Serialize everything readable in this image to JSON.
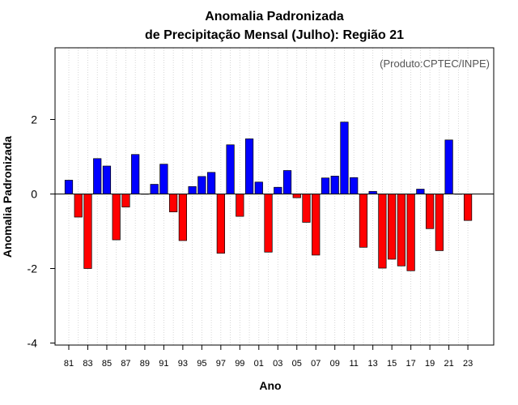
{
  "chart_data": {
    "type": "bar",
    "title": "Anomalia Padronizada",
    "subtitle": "de Precipitação Mensal (Julho): Região 21",
    "xlabel": "Ano",
    "ylabel": "Anomalia Padronizada",
    "annotation": "(Produto:CPTEC/INPE)",
    "ylim": [
      -4,
      4
    ],
    "yticks": [
      -4,
      -2,
      0,
      2
    ],
    "ytick_labels": [
      "-4",
      "-2",
      "0",
      "2"
    ],
    "xtick_labels": [
      "81",
      "83",
      "85",
      "87",
      "89",
      "91",
      "93",
      "95",
      "97",
      "99",
      "01",
      "03",
      "05",
      "07",
      "09",
      "11",
      "13",
      "15",
      "17",
      "19",
      "21",
      "23"
    ],
    "categories": [
      "1981",
      "1982",
      "1983",
      "1984",
      "1985",
      "1986",
      "1987",
      "1988",
      "1989",
      "1990",
      "1991",
      "1992",
      "1993",
      "1994",
      "1995",
      "1996",
      "1997",
      "1998",
      "1999",
      "2000",
      "2001",
      "2002",
      "2003",
      "2004",
      "2005",
      "2006",
      "2007",
      "2008",
      "2009",
      "2010",
      "2011",
      "2012",
      "2013",
      "2014",
      "2015",
      "2016",
      "2017",
      "2018",
      "2019",
      "2020",
      "2021",
      "2022",
      "2023"
    ],
    "values": [
      0.37,
      -0.62,
      -2.0,
      0.95,
      0.75,
      -1.23,
      -0.35,
      1.06,
      0.0,
      0.26,
      0.8,
      -0.48,
      -1.25,
      0.2,
      0.47,
      0.58,
      -1.59,
      1.32,
      -0.6,
      1.48,
      0.32,
      -1.56,
      0.18,
      0.63,
      -0.1,
      -0.76,
      -1.64,
      0.43,
      0.48,
      1.93,
      0.44,
      -1.43,
      0.07,
      -1.99,
      -1.75,
      -1.93,
      -2.06,
      0.13,
      -0.93,
      -1.52,
      1.45,
      0.0,
      -0.71
    ],
    "colors": {
      "positive": "#0000ff",
      "negative": "#ff0000",
      "grid": "#cccccc"
    },
    "grid": true
  }
}
